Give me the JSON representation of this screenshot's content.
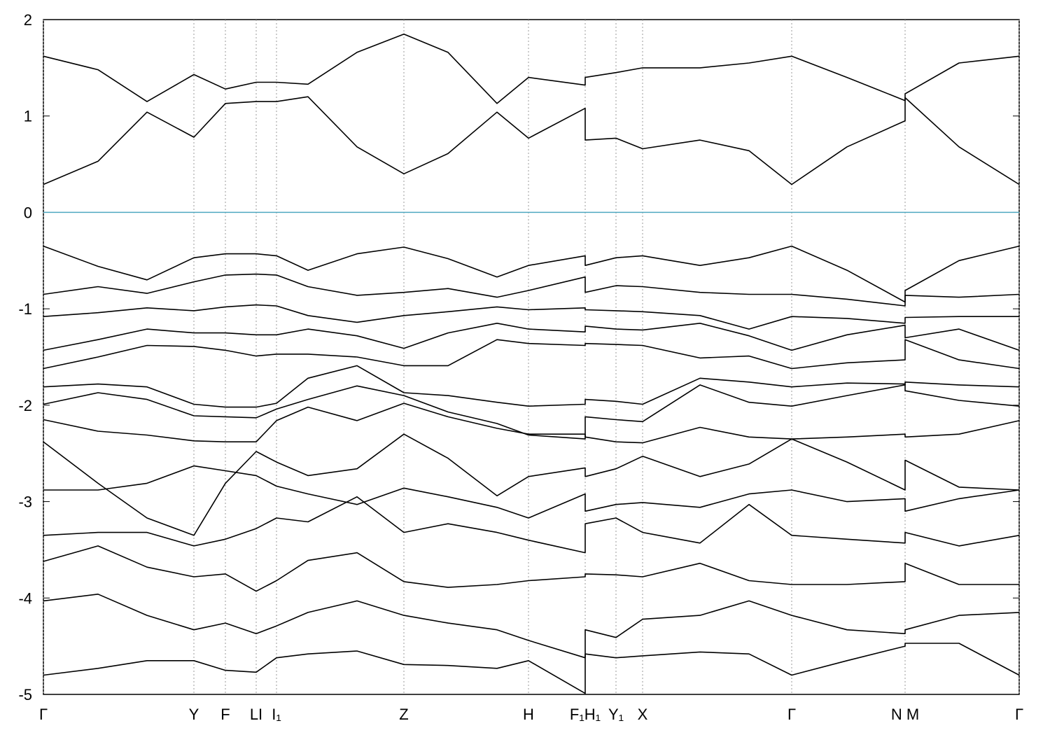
{
  "chart_data": {
    "type": "line",
    "x": [
      0,
      78,
      148,
      215,
      260,
      304,
      333,
      378,
      448,
      515,
      578,
      648,
      693,
      774,
      774,
      818,
      856,
      938,
      1008,
      1069,
      1148,
      1231,
      1231,
      1308,
      1394
    ],
    "xlim": [
      0,
      1394
    ],
    "xticks": [
      {
        "value": 0,
        "label": "Γ"
      },
      {
        "value": 215,
        "label": "Y"
      },
      {
        "value": 260,
        "label": "F"
      },
      {
        "value": 304,
        "label": "LI"
      },
      {
        "value": 333,
        "label": "I₁"
      },
      {
        "value": 515,
        "label": "Z"
      },
      {
        "value": 693,
        "label": "H"
      },
      {
        "value": 774,
        "label": "F₁H₁"
      },
      {
        "value": 818,
        "label": "Y₁"
      },
      {
        "value": 856,
        "label": "X"
      },
      {
        "value": 1069,
        "label": "Γ"
      },
      {
        "value": 1231,
        "label": "N M"
      },
      {
        "value": 1394,
        "label": "Γ"
      }
    ],
    "ylim": [
      -5,
      2
    ],
    "yticks": [
      2,
      1,
      0,
      -1,
      -2,
      -3,
      -4,
      -5
    ],
    "grid": true,
    "color": "#000000",
    "fermi_level": 0,
    "fermi_color": "#4fa8c0",
    "series": [
      {
        "values": [
          1.62,
          1.48,
          1.15,
          1.43,
          1.28,
          1.35,
          1.35,
          1.33,
          1.66,
          1.85,
          1.66,
          1.13,
          1.4,
          1.32,
          1.4,
          1.45,
          1.5,
          1.5,
          1.55,
          1.62,
          1.4,
          1.16,
          1.23,
          1.55,
          1.62
        ]
      },
      {
        "values": [
          0.29,
          0.53,
          1.04,
          0.78,
          1.13,
          1.15,
          1.15,
          1.2,
          0.68,
          0.4,
          0.61,
          1.04,
          0.77,
          1.08,
          0.75,
          0.77,
          0.66,
          0.75,
          0.64,
          0.29,
          0.68,
          0.95,
          1.19,
          0.68,
          0.29
        ]
      },
      {
        "values": [
          -0.35,
          -0.56,
          -0.7,
          -0.47,
          -0.43,
          -0.43,
          -0.45,
          -0.6,
          -0.43,
          -0.36,
          -0.48,
          -0.67,
          -0.55,
          -0.45,
          -0.55,
          -0.47,
          -0.45,
          -0.55,
          -0.47,
          -0.35,
          -0.6,
          -0.93,
          -0.81,
          -0.5,
          -0.35
        ]
      },
      {
        "values": [
          -0.85,
          -0.77,
          -0.84,
          -0.72,
          -0.65,
          -0.64,
          -0.65,
          -0.77,
          -0.86,
          -0.83,
          -0.79,
          -0.88,
          -0.81,
          -0.67,
          -0.83,
          -0.76,
          -0.77,
          -0.83,
          -0.85,
          -0.85,
          -0.9,
          -0.97,
          -0.86,
          -0.88,
          -0.85
        ]
      },
      {
        "values": [
          -1.08,
          -1.04,
          -0.99,
          -1.02,
          -0.98,
          -0.96,
          -0.97,
          -1.07,
          -1.14,
          -1.07,
          -1.03,
          -0.98,
          -1.01,
          -0.99,
          -1.01,
          -1.02,
          -1.03,
          -1.07,
          -1.21,
          -1.08,
          -1.1,
          -1.15,
          -1.09,
          -1.08,
          -1.08
        ]
      },
      {
        "values": [
          -1.43,
          -1.32,
          -1.21,
          -1.25,
          -1.25,
          -1.27,
          -1.27,
          -1.21,
          -1.28,
          -1.41,
          -1.25,
          -1.15,
          -1.21,
          -1.24,
          -1.18,
          -1.21,
          -1.22,
          -1.15,
          -1.28,
          -1.43,
          -1.27,
          -1.17,
          -1.3,
          -1.21,
          -1.43
        ]
      },
      {
        "values": [
          -1.62,
          -1.5,
          -1.38,
          -1.39,
          -1.43,
          -1.49,
          -1.47,
          -1.47,
          -1.5,
          -1.59,
          -1.59,
          -1.32,
          -1.36,
          -1.38,
          -1.36,
          -1.37,
          -1.38,
          -1.51,
          -1.49,
          -1.62,
          -1.56,
          -1.53,
          -1.32,
          -1.53,
          -1.62
        ]
      },
      {
        "values": [
          -1.81,
          -1.78,
          -1.81,
          -1.99,
          -2.02,
          -2.02,
          -1.98,
          -1.72,
          -1.59,
          -1.87,
          -1.9,
          -1.97,
          -2.01,
          -1.99,
          -1.94,
          -1.96,
          -1.99,
          -1.72,
          -1.76,
          -1.81,
          -1.77,
          -1.78,
          -1.85,
          -1.95,
          -2.01
        ]
      },
      {
        "values": [
          -1.99,
          -1.87,
          -1.94,
          -2.11,
          -2.12,
          -2.13,
          -2.04,
          -1.94,
          -1.8,
          -1.9,
          -2.07,
          -2.19,
          -2.31,
          -2.35,
          -2.12,
          -2.15,
          -2.17,
          -1.79,
          -1.97,
          -2.01,
          -1.9,
          -1.79,
          -1.76,
          -1.79,
          -1.81
        ]
      },
      {
        "values": [
          -2.15,
          -2.27,
          -2.31,
          -2.37,
          -2.38,
          -2.38,
          -2.16,
          -2.02,
          -2.16,
          -1.98,
          -2.12,
          -2.24,
          -2.3,
          -2.3,
          -2.33,
          -2.38,
          -2.39,
          -2.23,
          -2.33,
          -2.35,
          -2.33,
          -2.3,
          -2.33,
          -2.3,
          -2.16
        ]
      },
      {
        "values": [
          -2.38,
          -2.81,
          -3.17,
          -3.35,
          -2.81,
          -2.48,
          -2.59,
          -2.73,
          -2.66,
          -2.3,
          -2.55,
          -2.94,
          -2.74,
          -2.65,
          -2.74,
          -2.66,
          -2.53,
          -2.74,
          -2.61,
          -2.35,
          -2.59,
          -2.88,
          -2.57,
          -2.85,
          -2.88
        ]
      },
      {
        "values": [
          -2.88,
          -2.88,
          -2.81,
          -2.63,
          -2.68,
          -2.73,
          -2.84,
          -2.92,
          -3.03,
          -2.86,
          -2.95,
          -3.06,
          -3.17,
          -2.92,
          -3.1,
          -3.03,
          -3.01,
          -3.06,
          -2.92,
          -2.88,
          -3.0,
          -2.97,
          -3.1,
          -2.97,
          -2.88
        ]
      },
      {
        "values": [
          -3.35,
          -3.32,
          -3.32,
          -3.46,
          -3.39,
          -3.28,
          -3.17,
          -3.21,
          -2.95,
          -3.32,
          -3.23,
          -3.32,
          -3.4,
          -3.53,
          -3.23,
          -3.17,
          -3.32,
          -3.43,
          -3.03,
          -3.35,
          -3.39,
          -3.43,
          -3.32,
          -3.46,
          -3.35
        ]
      },
      {
        "values": [
          -3.62,
          -3.46,
          -3.68,
          -3.78,
          -3.75,
          -3.93,
          -3.82,
          -3.61,
          -3.53,
          -3.83,
          -3.89,
          -3.86,
          -3.82,
          -3.78,
          -3.75,
          -3.76,
          -3.78,
          -3.64,
          -3.82,
          -3.86,
          -3.86,
          -3.83,
          -3.64,
          -3.86,
          -3.86
        ]
      },
      {
        "values": [
          -4.03,
          -3.96,
          -4.18,
          -4.33,
          -4.26,
          -4.37,
          -4.29,
          -4.15,
          -4.03,
          -4.18,
          -4.26,
          -4.33,
          -4.44,
          -4.62,
          -4.33,
          -4.41,
          -4.22,
          -4.18,
          -4.03,
          -4.18,
          -4.33,
          -4.37,
          -4.33,
          -4.18,
          -4.15
        ]
      },
      {
        "values": [
          -4.8,
          -4.73,
          -4.65,
          -4.65,
          -4.75,
          -4.77,
          -4.62,
          -4.58,
          -4.55,
          -4.69,
          -4.7,
          -4.73,
          -4.65,
          -4.99,
          -4.58,
          -4.62,
          -4.6,
          -4.56,
          -4.58,
          -4.8,
          -4.65,
          -4.5,
          -4.47,
          -4.47,
          -4.8
        ]
      }
    ]
  }
}
